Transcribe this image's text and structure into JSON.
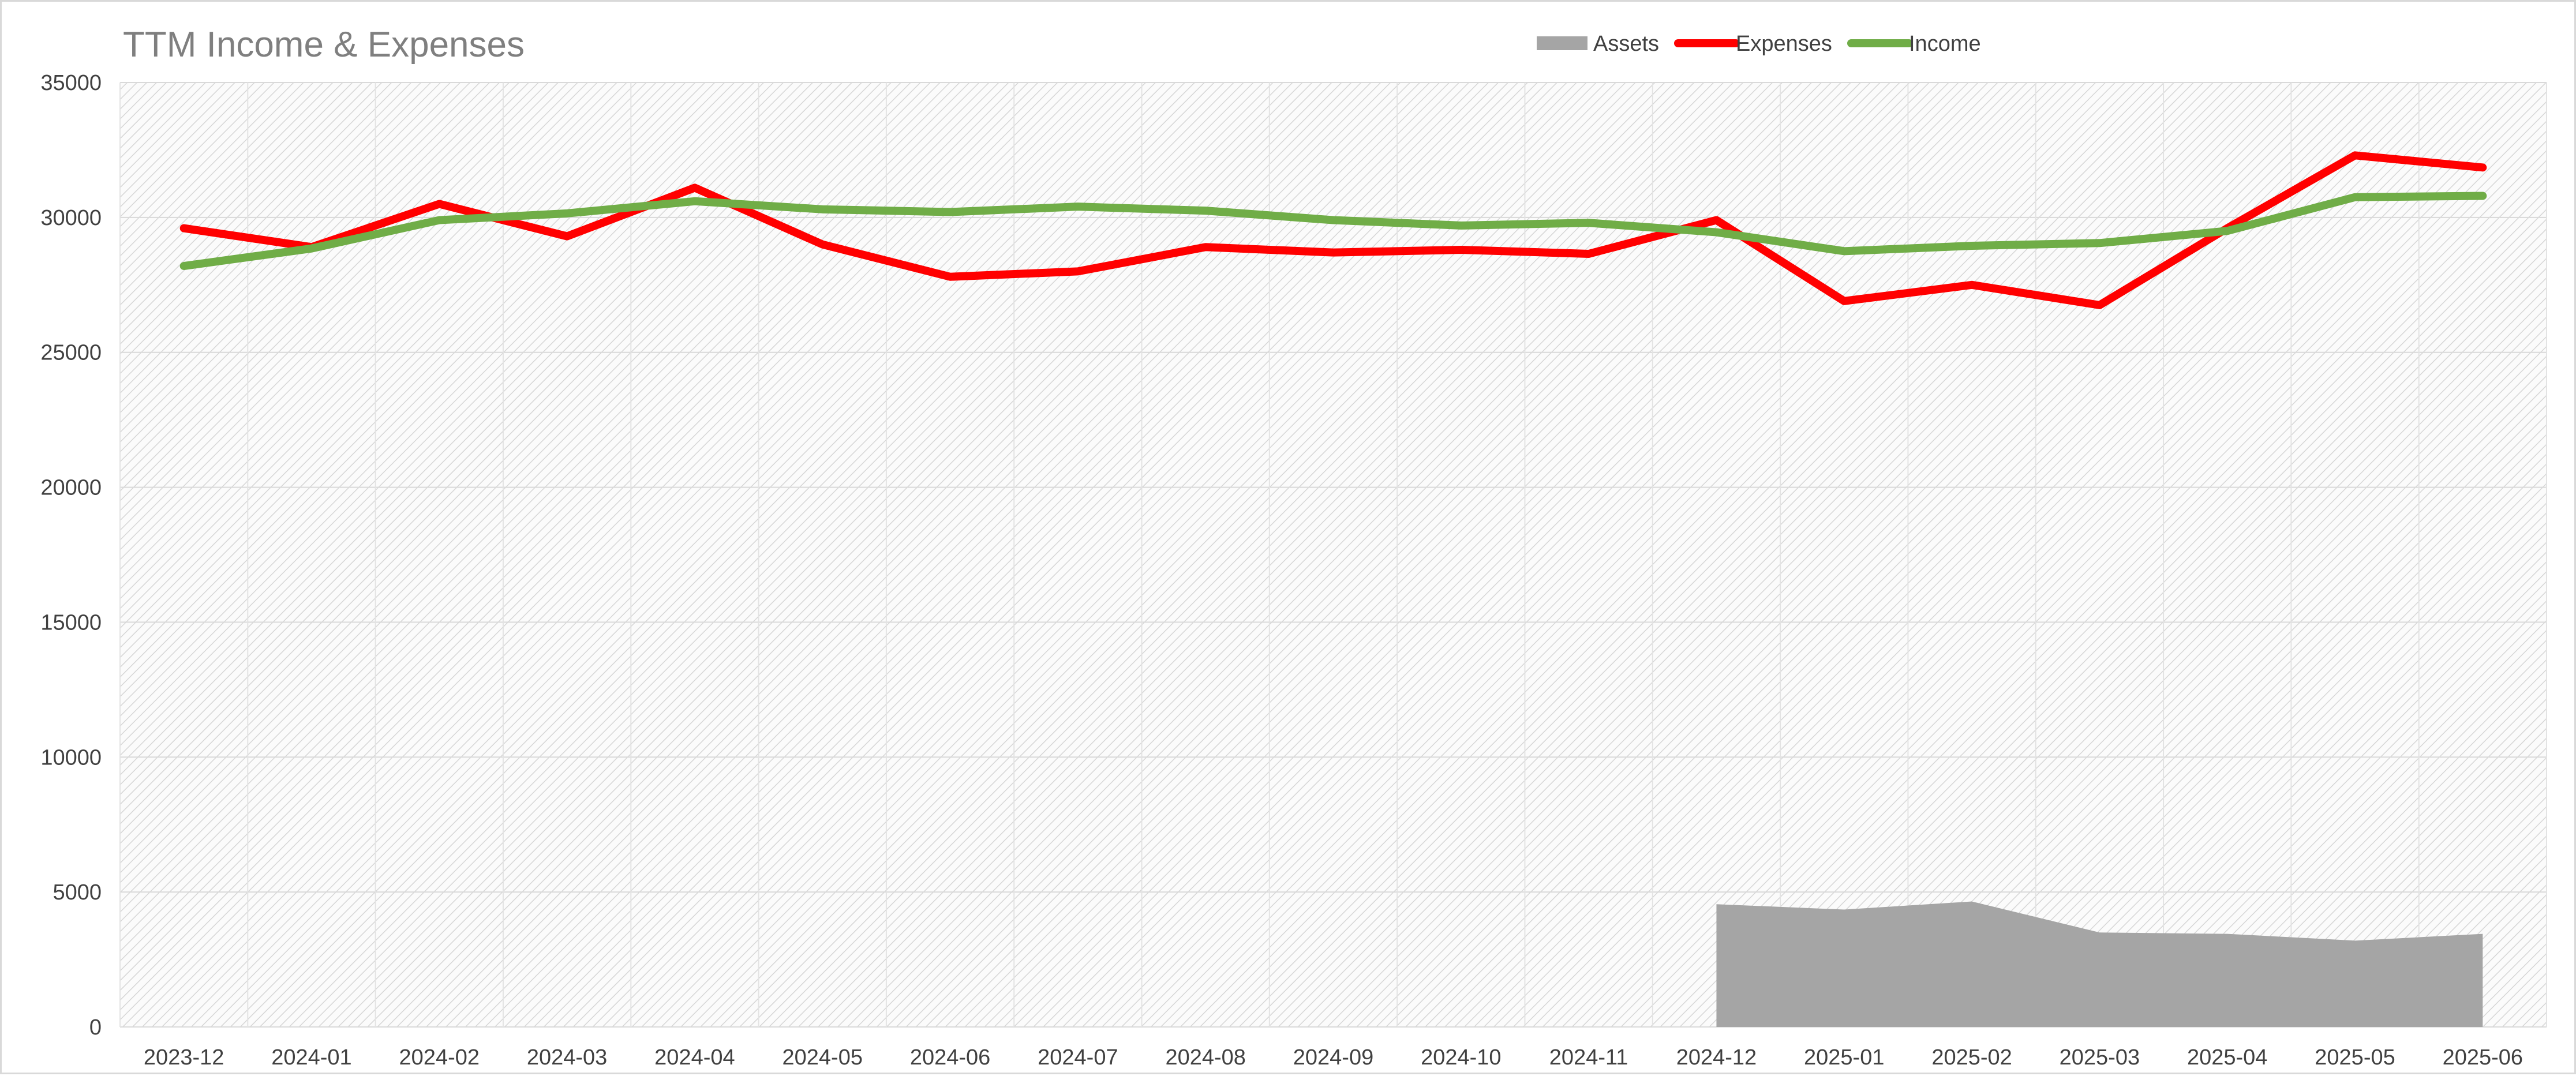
{
  "chart_data": {
    "type": "line",
    "title": "TTM Income & Expenses",
    "xlabel": "",
    "ylabel": "",
    "categories": [
      "2023-12",
      "2024-01",
      "2024-02",
      "2024-03",
      "2024-04",
      "2024-05",
      "2024-06",
      "2024-07",
      "2024-08",
      "2024-09",
      "2024-10",
      "2024-11",
      "2024-12",
      "2025-01",
      "2025-02",
      "2025-03",
      "2025-04",
      "2025-05",
      "2025-06"
    ],
    "ylim": [
      0,
      35000
    ],
    "yticks": [
      0,
      5000,
      10000,
      15000,
      20000,
      25000,
      30000,
      35000
    ],
    "grid": true,
    "legend_position": "top",
    "series": [
      {
        "name": "Assets",
        "type": "area",
        "color": "#a5a5a5",
        "values": [
          null,
          null,
          null,
          null,
          null,
          null,
          null,
          null,
          null,
          null,
          null,
          null,
          4550,
          4350,
          4650,
          3500,
          3450,
          3200,
          3450
        ]
      },
      {
        "name": "Expenses",
        "type": "line",
        "color": "#ff0000",
        "values": [
          29600,
          28900,
          30500,
          29300,
          31100,
          29000,
          27800,
          28000,
          28900,
          28700,
          28800,
          28650,
          29900,
          26900,
          27500,
          26750,
          29600,
          32300,
          31850
        ]
      },
      {
        "name": "Income",
        "type": "line",
        "color": "#70ad47",
        "values": [
          28200,
          28850,
          29900,
          30150,
          30600,
          30300,
          30200,
          30400,
          30250,
          29900,
          29700,
          29800,
          29450,
          28750,
          28950,
          29050,
          29500,
          30750,
          30800
        ]
      }
    ]
  }
}
